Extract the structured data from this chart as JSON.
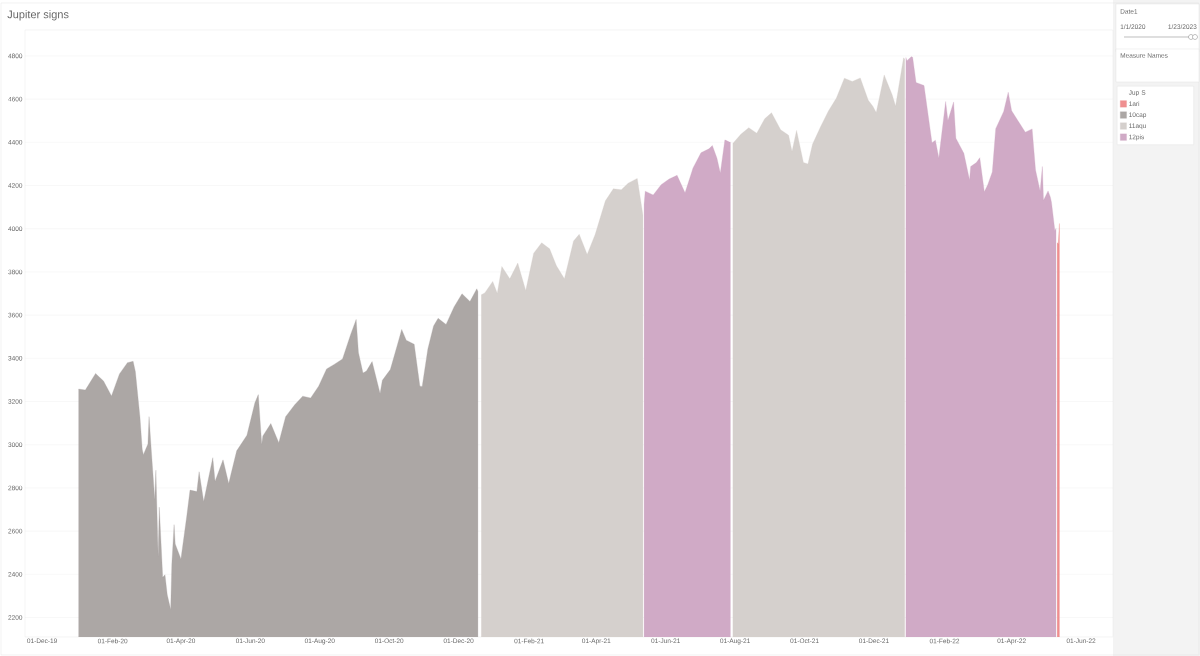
{
  "chart_data": {
    "type": "area",
    "title": "Jupiter signs",
    "legend_title": "Jup S",
    "legend": "right",
    "grid": "y",
    "annotations": [
      "Date1",
      "1/1/2020",
      "1/23/2023",
      "Measure Names"
    ],
    "xlim": [
      "2019-11-16",
      "2022-06-29"
    ],
    "ylim": [
      2110,
      4920
    ],
    "yticks": [
      2200,
      2400,
      2600,
      2800,
      3000,
      3200,
      3400,
      3600,
      3800,
      4000,
      4200,
      4400,
      4600,
      4800
    ],
    "xticks": [
      {
        "value": "2019-12-01",
        "label": "01-Dec-19"
      },
      {
        "value": "2020-02-01",
        "label": "01-Feb-20"
      },
      {
        "value": "2020-04-01",
        "label": "01-Apr-20"
      },
      {
        "value": "2020-06-01",
        "label": "01-Jun-20"
      },
      {
        "value": "2020-08-01",
        "label": "01-Aug-20"
      },
      {
        "value": "2020-10-01",
        "label": "01-Oct-20"
      },
      {
        "value": "2020-12-01",
        "label": "01-Dec-20"
      },
      {
        "value": "2021-02-01",
        "label": "01-Feb-21"
      },
      {
        "value": "2021-04-01",
        "label": "01-Apr-21"
      },
      {
        "value": "2021-06-01",
        "label": "01-Jun-21"
      },
      {
        "value": "2021-08-01",
        "label": "01-Aug-21"
      },
      {
        "value": "2021-10-01",
        "label": "01-Oct-21"
      },
      {
        "value": "2021-12-01",
        "label": "01-Dec-21"
      },
      {
        "value": "2022-02-01",
        "label": "01-Feb-22"
      },
      {
        "value": "2022-04-01",
        "label": "01-Apr-22"
      },
      {
        "value": "2022-06-01",
        "label": "01-Jun-22"
      }
    ],
    "series": [
      {
        "name": "1ari",
        "color": "#ef8f90",
        "x": [
          "2022-05-11",
          "2022-05-12",
          "2022-05-13"
        ],
        "values": [
          3935,
          3930,
          4024
        ]
      },
      {
        "name": "10cap",
        "color": "#aca7a5",
        "x": [
          "2020-01-02",
          "2020-01-08",
          "2020-01-17",
          "2020-01-24",
          "2020-01-31",
          "2020-02-07",
          "2020-02-14",
          "2020-02-19",
          "2020-02-21",
          "2020-02-25",
          "2020-02-27",
          "2020-02-28",
          "2020-03-03",
          "2020-03-04",
          "2020-03-06",
          "2020-03-09",
          "2020-03-10",
          "2020-03-12",
          "2020-03-13",
          "2020-03-16",
          "2020-03-18",
          "2020-03-20",
          "2020-03-23",
          "2020-03-24",
          "2020-03-26",
          "2020-03-27",
          "2020-04-01",
          "2020-04-06",
          "2020-04-09",
          "2020-04-15",
          "2020-04-17",
          "2020-04-21",
          "2020-04-29",
          "2020-05-01",
          "2020-05-08",
          "2020-05-13",
          "2020-05-15",
          "2020-05-20",
          "2020-05-29",
          "2020-06-05",
          "2020-06-08",
          "2020-06-11",
          "2020-06-12",
          "2020-06-19",
          "2020-06-26",
          "2020-07-02",
          "2020-07-10",
          "2020-07-17",
          "2020-07-24",
          "2020-07-31",
          "2020-08-07",
          "2020-08-14",
          "2020-08-21",
          "2020-08-28",
          "2020-09-02",
          "2020-09-04",
          "2020-09-08",
          "2020-09-11",
          "2020-09-16",
          "2020-09-23",
          "2020-09-25",
          "2020-10-02",
          "2020-10-09",
          "2020-10-12",
          "2020-10-16",
          "2020-10-23",
          "2020-10-28",
          "2020-10-30",
          "2020-11-04",
          "2020-11-09",
          "2020-11-13",
          "2020-11-20",
          "2020-11-27",
          "2020-12-04",
          "2020-12-11",
          "2020-12-17",
          "2020-12-18"
        ],
        "values": [
          3258,
          3253,
          3330,
          3295,
          3226,
          3328,
          3380,
          3386,
          3338,
          3128,
          2979,
          2954,
          3003,
          3130,
          2972,
          2747,
          2882,
          2481,
          2711,
          2386,
          2398,
          2305,
          2237,
          2447,
          2630,
          2541,
          2471,
          2664,
          2790,
          2783,
          2875,
          2737,
          2940,
          2831,
          2930,
          2820,
          2864,
          2972,
          3044,
          3194,
          3232,
          3002,
          3041,
          3098,
          3009,
          3130,
          3185,
          3225,
          3216,
          3271,
          3351,
          3373,
          3397,
          3508,
          3580,
          3427,
          3332,
          3341,
          3385,
          3237,
          3298,
          3348,
          3477,
          3534,
          3484,
          3465,
          3271,
          3270,
          3443,
          3550,
          3585,
          3557,
          3638,
          3699,
          3663,
          3722,
          3709
        ]
      },
      {
        "name": "11aqu",
        "color": "#d5d0cd",
        "x": [
          "2020-12-21",
          "2020-12-24",
          "2020-12-31",
          "2021-01-04",
          "2021-01-08",
          "2021-01-15",
          "2021-01-22",
          "2021-01-27",
          "2021-01-29",
          "2021-02-05",
          "2021-02-12",
          "2021-02-19",
          "2021-02-25",
          "2021-03-04",
          "2021-03-12",
          "2021-03-17",
          "2021-03-24",
          "2021-03-31",
          "2021-04-09",
          "2021-04-16",
          "2021-04-23",
          "2021-04-29",
          "2021-05-07",
          "2021-05-12",
          "2021-05-13",
          "2021-07-28",
          "2021-07-30",
          "2021-08-06",
          "2021-08-13",
          "2021-08-20",
          "2021-08-27",
          "2021-09-02",
          "2021-09-10",
          "2021-09-17",
          "2021-09-20",
          "2021-09-24",
          "2021-09-30",
          "2021-10-04",
          "2021-10-08",
          "2021-10-15",
          "2021-10-22",
          "2021-10-29",
          "2021-11-05",
          "2021-11-12",
          "2021-11-19",
          "2021-11-26",
          "2021-11-30",
          "2021-12-03",
          "2021-12-10",
          "2021-12-17",
          "2021-12-20",
          "2021-12-27",
          "2021-12-28"
        ],
        "values": [
          3694,
          3703,
          3756,
          3701,
          3825,
          3768,
          3841,
          3750,
          3714,
          3887,
          3935,
          3907,
          3829,
          3768,
          3943,
          3974,
          3881,
          3973,
          4129,
          4185,
          4180,
          4211,
          4233,
          4063,
          null,
          null,
          4395,
          4437,
          4468,
          4442,
          4509,
          4537,
          4458,
          4433,
          4358,
          4455,
          4307,
          4300,
          4391,
          4471,
          4545,
          4605,
          4697,
          4682,
          4698,
          4595,
          4567,
          4538,
          4712,
          4620,
          4568,
          4791,
          4786
        ]
      },
      {
        "name": "12pis",
        "color": "#d0aac6",
        "x": [
          "2021-05-13",
          "2021-05-14",
          "2021-05-21",
          "2021-05-28",
          "2021-06-04",
          "2021-06-11",
          "2021-06-18",
          "2021-06-25",
          "2021-07-02",
          "2021-07-09",
          "2021-07-12",
          "2021-07-16",
          "2021-07-19",
          "2021-07-23",
          "2021-07-27",
          "2021-07-28",
          "2021-12-28",
          "2021-12-29",
          "2021-12-30",
          "2022-01-03",
          "2022-01-04",
          "2022-01-07",
          "2022-01-14",
          "2022-01-21",
          "2022-01-24",
          "2022-01-27",
          "2022-02-02",
          "2022-02-04",
          "2022-02-09",
          "2022-02-11",
          "2022-02-18",
          "2022-02-23",
          "2022-02-24",
          "2022-03-01",
          "2022-03-04",
          "2022-03-08",
          "2022-03-11",
          "2022-03-15",
          "2022-03-18",
          "2022-03-25",
          "2022-03-29",
          "2022-04-01",
          "2022-04-08",
          "2022-04-13",
          "2022-04-19",
          "2022-04-22",
          "2022-04-26",
          "2022-04-28",
          "2022-04-29",
          "2022-05-03",
          "2022-05-05",
          "2022-05-06",
          "2022-05-09",
          "2022-05-10"
        ],
        "values": [
          4113,
          4174,
          4156,
          4204,
          4230,
          4247,
          4166,
          4281,
          4352,
          4370,
          4385,
          4327,
          4258,
          4412,
          4401,
          4400,
          null,
          4793,
          4778,
          4797,
          4794,
          4677,
          4663,
          4398,
          4410,
          4327,
          4589,
          4501,
          4587,
          4419,
          4349,
          4226,
          4288,
          4306,
          4329,
          4171,
          4204,
          4263,
          4463,
          4543,
          4632,
          4546,
          4488,
          4447,
          4462,
          4272,
          4175,
          4288,
          4132,
          4175,
          4147,
          4123,
          3991,
          4001
        ]
      }
    ]
  }
}
